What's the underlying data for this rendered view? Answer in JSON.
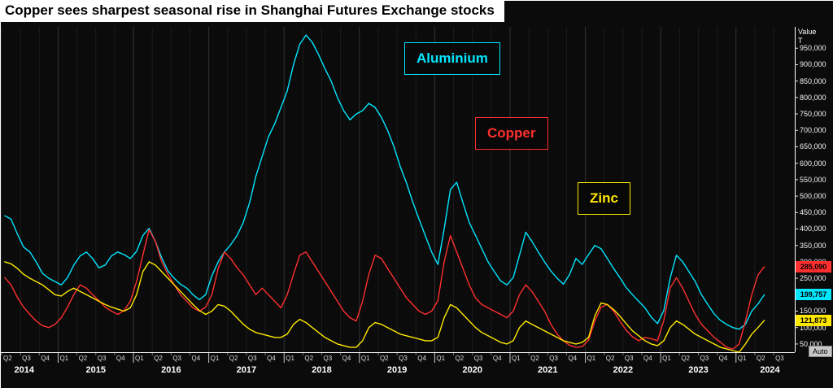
{
  "header": {
    "title": "Copper sees sharpest seasonal rise in Shanghai Futures Exchange stocks"
  },
  "axis": {
    "value_label": "Value",
    "unit_label": "T",
    "auto_label": "Auto",
    "y_ticks": [
      950000,
      900000,
      850000,
      800000,
      750000,
      700000,
      650000,
      600000,
      550000,
      500000,
      450000,
      400000,
      350000,
      300000,
      250000,
      200000,
      150000,
      100000,
      50000
    ]
  },
  "legend": [
    {
      "label": "Aluminium",
      "color": "#00e6ff"
    },
    {
      "label": "Copper",
      "color": "#ff2f2f"
    },
    {
      "label": "Zinc",
      "color": "#ffe800"
    }
  ],
  "chart_data": {
    "type": "line",
    "title": "Copper sees sharpest seasonal rise in Shanghai Futures Exchange stocks",
    "ylabel": "Value (T)",
    "legend_position": "floating-annotation-boxes",
    "grid": "vertical-quarter-lines",
    "xlim": [
      2014.25,
      2024.78
    ],
    "ylim": [
      25000,
      1015000
    ],
    "x_start": 2014.2917,
    "x_step": 0.0833333,
    "value_scale": 1000,
    "x_axis": {
      "quarters": [
        "Q2",
        "Q3",
        "Q4",
        "Q1",
        "Q2",
        "Q3",
        "Q4",
        "Q1",
        "Q2",
        "Q3",
        "Q4",
        "Q1",
        "Q2",
        "Q3",
        "Q4",
        "Q1",
        "Q2",
        "Q3",
        "Q4",
        "Q1",
        "Q2",
        "Q3",
        "Q4",
        "Q1",
        "Q2",
        "Q3",
        "Q4",
        "Q1",
        "Q2",
        "Q3",
        "Q4",
        "Q1",
        "Q2",
        "Q3",
        "Q4",
        "Q1",
        "Q2",
        "Q3",
        "Q4",
        "Q1",
        "Q2",
        "Q3"
      ],
      "years": [
        {
          "label": "2014",
          "center": 2014.55
        },
        {
          "label": "2015",
          "center": 2015.5
        },
        {
          "label": "2016",
          "center": 2016.5
        },
        {
          "label": "2017",
          "center": 2017.5
        },
        {
          "label": "2018",
          "center": 2018.5
        },
        {
          "label": "2019",
          "center": 2019.5
        },
        {
          "label": "2020",
          "center": 2020.5
        },
        {
          "label": "2021",
          "center": 2021.5
        },
        {
          "label": "2022",
          "center": 2022.5
        },
        {
          "label": "2023",
          "center": 2023.5
        },
        {
          "label": "2024",
          "center": 2024.45
        }
      ]
    },
    "series": [
      {
        "name": "Aluminium",
        "color": "#00e6ff",
        "last_label": "199,757",
        "values": [
          440,
          430,
          385,
          345,
          330,
          300,
          265,
          250,
          240,
          230,
          252,
          290,
          318,
          330,
          310,
          282,
          290,
          318,
          330,
          322,
          310,
          332,
          380,
          402,
          362,
          312,
          272,
          250,
          232,
          220,
          200,
          185,
          200,
          258,
          300,
          330,
          352,
          380,
          420,
          480,
          560,
          620,
          680,
          720,
          770,
          820,
          900,
          962,
          990,
          968,
          930,
          888,
          850,
          800,
          760,
          732,
          750,
          760,
          782,
          770,
          740,
          700,
          650,
          590,
          540,
          482,
          430,
          380,
          330,
          292,
          400,
          520,
          542,
          480,
          420,
          380,
          340,
          300,
          270,
          242,
          230,
          252,
          320,
          390,
          362,
          330,
          300,
          272,
          250,
          232,
          262,
          310,
          292,
          322,
          350,
          340,
          310,
          280,
          252,
          222,
          200,
          180,
          160,
          132,
          112,
          152,
          250,
          320,
          300,
          270,
          240,
          200,
          170,
          142,
          122,
          110,
          100,
          95,
          110,
          150,
          172,
          199.757
        ]
      },
      {
        "name": "Copper",
        "color": "#ff2f2f",
        "last_label": "285,090",
        "values": [
          252,
          230,
          192,
          162,
          140,
          120,
          106,
          100,
          110,
          130,
          162,
          200,
          230,
          220,
          200,
          182,
          162,
          150,
          140,
          152,
          180,
          240,
          320,
          398,
          362,
          300,
          262,
          230,
          200,
          180,
          160,
          150,
          162,
          200,
          280,
          330,
          310,
          282,
          260,
          230,
          200,
          220,
          200,
          180,
          160,
          200,
          262,
          320,
          330,
          300,
          270,
          240,
          210,
          180,
          150,
          130,
          120,
          180,
          262,
          320,
          310,
          280,
          250,
          220,
          190,
          170,
          150,
          140,
          150,
          182,
          300,
          380,
          330,
          280,
          230,
          190,
          170,
          160,
          150,
          140,
          130,
          150,
          200,
          230,
          210,
          180,
          150,
          110,
          80,
          60,
          46,
          40,
          42,
          62,
          120,
          162,
          170,
          150,
          120,
          92,
          72,
          60,
          70,
          66,
          60,
          122,
          220,
          252,
          220,
          180,
          140,
          110,
          90,
          70,
          56,
          40,
          35,
          50,
          120,
          200,
          260,
          285.09
        ]
      },
      {
        "name": "Zinc",
        "color": "#ffe800",
        "last_label": "121,873",
        "values": [
          300,
          294,
          280,
          262,
          250,
          240,
          230,
          215,
          200,
          196,
          210,
          220,
          210,
          200,
          190,
          180,
          170,
          162,
          156,
          150,
          160,
          200,
          270,
          300,
          290,
          270,
          250,
          230,
          210,
          190,
          170,
          152,
          140,
          150,
          170,
          165,
          150,
          130,
          110,
          95,
          85,
          80,
          75,
          70,
          70,
          80,
          110,
          125,
          115,
          100,
          85,
          70,
          60,
          50,
          45,
          40,
          40,
          60,
          100,
          115,
          110,
          100,
          90,
          80,
          75,
          70,
          65,
          60,
          60,
          70,
          130,
          170,
          160,
          140,
          120,
          100,
          85,
          75,
          65,
          55,
          50,
          60,
          100,
          120,
          110,
          100,
          90,
          80,
          70,
          60,
          55,
          50,
          55,
          70,
          135,
          175,
          170,
          155,
          135,
          112,
          90,
          75,
          60,
          50,
          45,
          60,
          100,
          120,
          110,
          95,
          80,
          70,
          60,
          50,
          40,
          35,
          30,
          25,
          50,
          80,
          100,
          121.873
        ]
      }
    ]
  }
}
